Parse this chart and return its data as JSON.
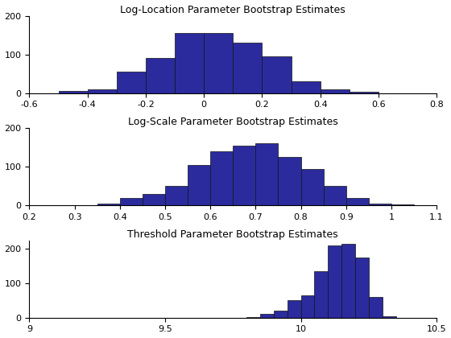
{
  "plot1": {
    "title": "Log-Location Parameter Bootstrap Estimates",
    "xlim": [
      -0.6,
      0.8
    ],
    "ylim": [
      0,
      200
    ],
    "xticks": [
      -0.6,
      -0.4,
      -0.2,
      0.0,
      0.2,
      0.4,
      0.6,
      0.8
    ],
    "yticks": [
      0,
      100,
      200
    ],
    "bin_left_edges": [
      -0.5,
      -0.4,
      -0.3,
      -0.2,
      -0.1,
      0.0,
      0.1,
      0.2,
      0.3,
      0.4,
      0.5
    ],
    "bar_heights": [
      5,
      10,
      55,
      90,
      155,
      155,
      130,
      95,
      30,
      10,
      3
    ],
    "bin_width": 0.1
  },
  "plot2": {
    "title": "Log-Scale Parameter Bootstrap Estimates",
    "xlim": [
      0.2,
      1.1
    ],
    "ylim": [
      0,
      200
    ],
    "xticks": [
      0.2,
      0.3,
      0.4,
      0.5,
      0.6,
      0.7,
      0.8,
      0.9,
      1.0,
      1.1
    ],
    "yticks": [
      0,
      100,
      200
    ],
    "bin_left_edges": [
      0.35,
      0.4,
      0.45,
      0.5,
      0.55,
      0.6,
      0.65,
      0.7,
      0.75,
      0.8,
      0.85,
      0.9,
      0.95,
      1.0
    ],
    "bar_heights": [
      5,
      20,
      30,
      50,
      105,
      140,
      155,
      160,
      125,
      95,
      50,
      20,
      5,
      2
    ],
    "bin_width": 0.05
  },
  "plot3": {
    "title": "Threshold Parameter Bootstrap Estimates",
    "xlim": [
      9,
      10.5
    ],
    "ylim": [
      0,
      225
    ],
    "xticks": [
      9,
      9.5,
      10.0,
      10.5
    ],
    "yticks": [
      0,
      100,
      200
    ],
    "bin_left_edges": [
      9.8,
      9.85,
      9.9,
      9.95,
      10.0,
      10.05,
      10.1,
      10.15,
      10.2,
      10.25,
      10.3
    ],
    "bar_heights": [
      2,
      10,
      20,
      50,
      65,
      135,
      210,
      215,
      175,
      60,
      3
    ],
    "bin_width": 0.05
  },
  "bar_color": "#2b2b9e",
  "bar_edgecolor": "#111111",
  "figsize": [
    5.6,
    4.2
  ],
  "dpi": 100
}
